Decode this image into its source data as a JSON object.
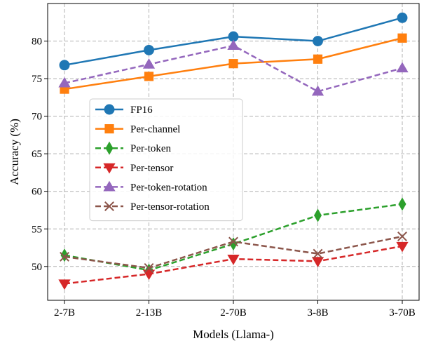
{
  "chart_data": {
    "type": "line",
    "xlabel": "Models (Llama-)",
    "ylabel": "Accuracy (%)",
    "categories": [
      "2-7B",
      "2-13B",
      "2-70B",
      "3-8B",
      "3-70B"
    ],
    "ylim": [
      45.5,
      85
    ],
    "yticks": [
      50,
      55,
      60,
      65,
      70,
      75,
      80
    ],
    "grid": true,
    "legend_position": "center-left",
    "series": [
      {
        "name": "FP16",
        "values": [
          76.8,
          78.8,
          80.6,
          80.0,
          83.1
        ],
        "color": "#1f77b4",
        "marker": "circle",
        "dash": "solid"
      },
      {
        "name": "Per-channel",
        "values": [
          73.6,
          75.3,
          77.0,
          77.6,
          80.4
        ],
        "color": "#ff7f0e",
        "marker": "square",
        "dash": "solid"
      },
      {
        "name": "Per-token",
        "values": [
          51.5,
          49.5,
          53.0,
          56.8,
          58.3
        ],
        "color": "#2ca02c",
        "marker": "diamond",
        "dash": "dashed"
      },
      {
        "name": "Per-tensor",
        "values": [
          47.7,
          49.0,
          51.0,
          50.7,
          52.7
        ],
        "color": "#d62728",
        "marker": "triangle-down",
        "dash": "dashed"
      },
      {
        "name": "Per-token-rotation",
        "values": [
          74.4,
          76.9,
          79.4,
          73.3,
          76.4
        ],
        "color": "#9467bd",
        "marker": "triangle-up",
        "dash": "dashed"
      },
      {
        "name": "Per-tensor-rotation",
        "values": [
          51.3,
          49.8,
          53.3,
          51.7,
          54.0
        ],
        "color": "#8c564b",
        "marker": "x",
        "dash": "dashed"
      }
    ]
  }
}
